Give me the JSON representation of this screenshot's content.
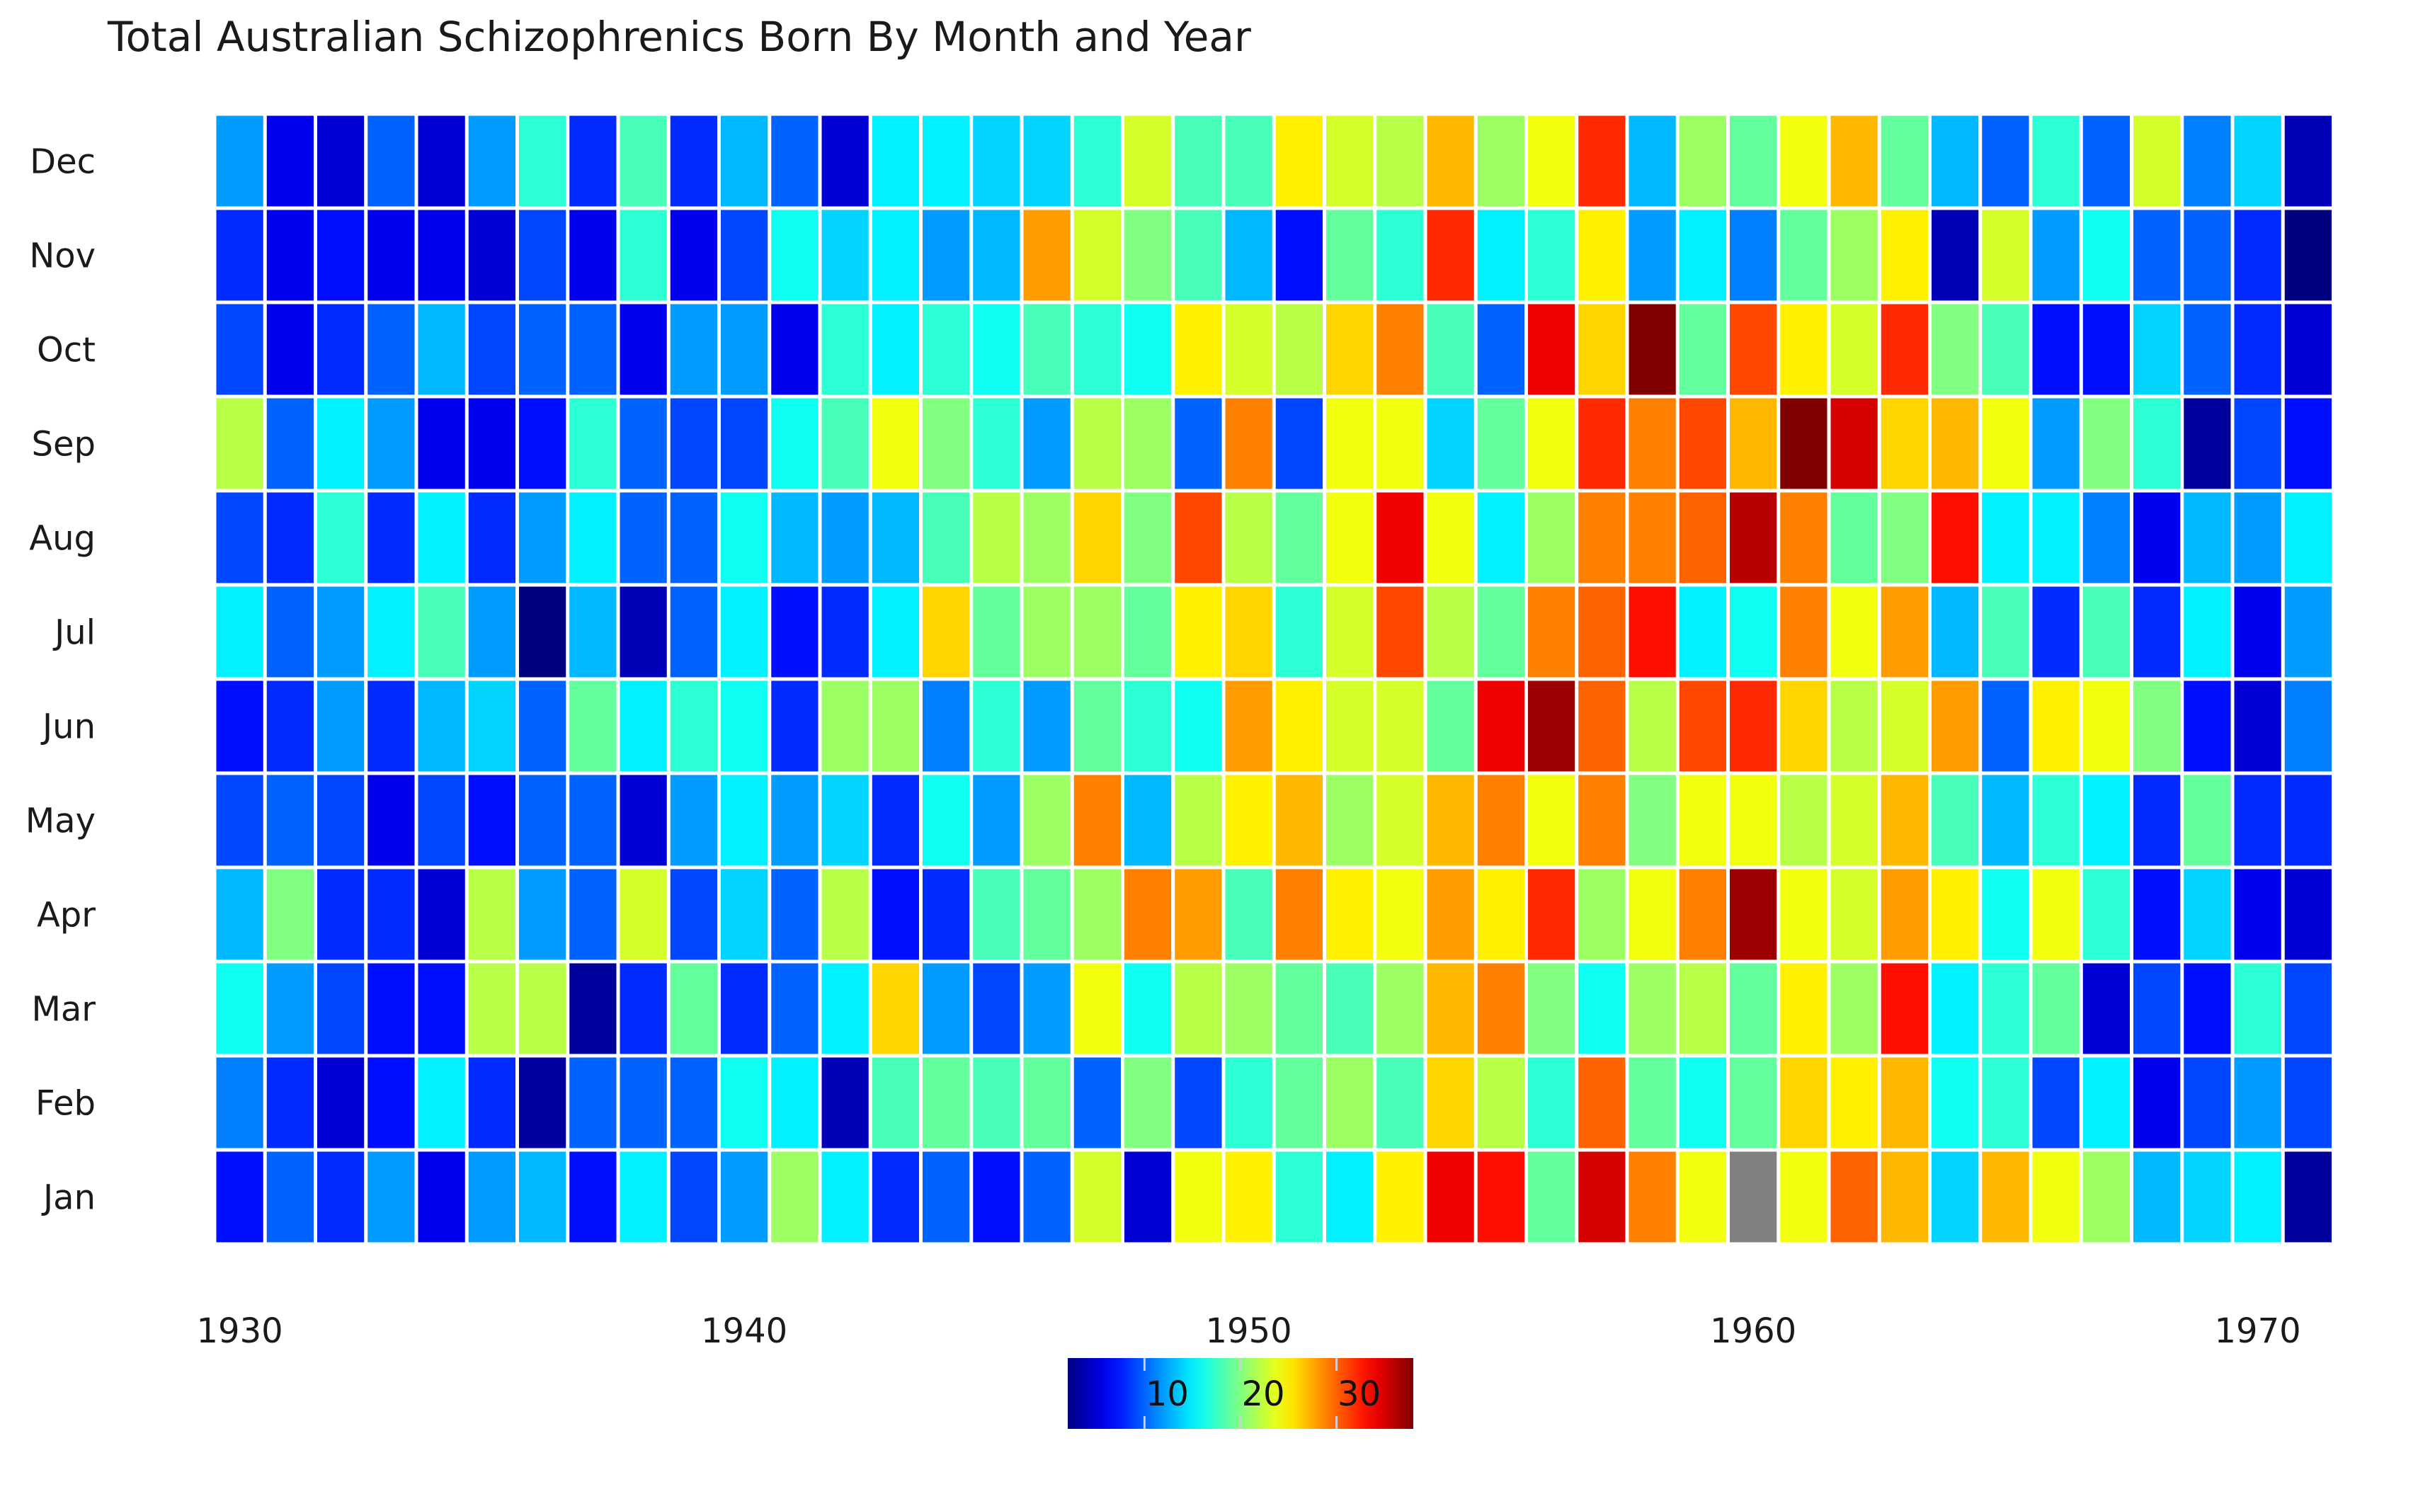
{
  "chart_data": {
    "type": "heatmap",
    "title": "Total Australian Schizophrenics Born By Month and Year",
    "xlabel": "",
    "ylabel": "",
    "x_ticks": [
      1930,
      1940,
      1950,
      1960,
      1970
    ],
    "y_categories": [
      "Jan",
      "Feb",
      "Mar",
      "Apr",
      "May",
      "Jun",
      "Jul",
      "Aug",
      "Sep",
      "Oct",
      "Nov",
      "Dec"
    ],
    "years": [
      1930,
      1931,
      1932,
      1933,
      1934,
      1935,
      1936,
      1937,
      1938,
      1939,
      1940,
      1941,
      1942,
      1943,
      1944,
      1945,
      1946,
      1947,
      1948,
      1949,
      1950,
      1951,
      1952,
      1953,
      1954,
      1955,
      1956,
      1957,
      1958,
      1959,
      1960,
      1961,
      1962,
      1963,
      1964,
      1965,
      1966,
      1967,
      1968,
      1969,
      1970,
      1971
    ],
    "colorbar": {
      "colormap": "jet",
      "range": [
        2,
        38
      ],
      "ticks": [
        10,
        20,
        30
      ],
      "missing_color": "#808080",
      "position": "bottom"
    },
    "values": {
      "Dec": [
        12,
        6,
        5,
        10,
        5,
        12,
        17,
        8,
        18,
        8,
        13,
        10,
        5,
        15,
        15,
        14,
        14,
        17,
        23,
        18,
        18,
        25,
        23,
        22,
        27,
        21,
        24,
        32,
        13,
        21,
        19,
        24,
        27,
        19,
        13,
        10,
        17,
        10,
        23,
        11,
        14,
        4
      ],
      "Nov": [
        8,
        6,
        7,
        6,
        6,
        5,
        9,
        6,
        17,
        6,
        9,
        16,
        14,
        15,
        12,
        13,
        28,
        23,
        20,
        18,
        13,
        7,
        19,
        17,
        32,
        15,
        17,
        25,
        12,
        15,
        11,
        19,
        21,
        25,
        4,
        23,
        12,
        16,
        10,
        10,
        8,
        2
      ],
      "Oct": [
        9,
        6,
        8,
        10,
        13,
        9,
        10,
        10,
        6,
        12,
        12,
        6,
        17,
        15,
        17,
        16,
        18,
        17,
        16,
        25,
        23,
        22,
        26,
        29,
        18,
        10,
        34,
        26,
        38,
        19,
        31,
        25,
        23,
        32,
        20,
        18,
        7,
        7,
        14,
        10,
        8,
        5
      ],
      "Sep": [
        22,
        10,
        15,
        12,
        6,
        6,
        7,
        17,
        10,
        9,
        9,
        16,
        18,
        24,
        20,
        17,
        12,
        22,
        21,
        10,
        29,
        9,
        24,
        24,
        14,
        19,
        24,
        32,
        29,
        31,
        27,
        38,
        35,
        26,
        27,
        24,
        12,
        20,
        17,
        3,
        9,
        7
      ],
      "Aug": [
        9,
        8,
        17,
        8,
        15,
        8,
        12,
        15,
        10,
        10,
        16,
        13,
        12,
        13,
        18,
        22,
        21,
        26,
        20,
        31,
        22,
        19,
        24,
        34,
        24,
        15,
        21,
        29,
        29,
        30,
        36,
        29,
        19,
        20,
        33,
        15,
        15,
        11,
        6,
        13,
        12,
        15
      ],
      "Jul": [
        15,
        10,
        12,
        15,
        18,
        12,
        2,
        13,
        4,
        10,
        15,
        7,
        8,
        15,
        26,
        19,
        21,
        21,
        19,
        25,
        26,
        17,
        23,
        31,
        22,
        19,
        29,
        30,
        33,
        15,
        16,
        29,
        24,
        28,
        13,
        18,
        8,
        18,
        8,
        15,
        6,
        12
      ],
      "Jun": [
        7,
        8,
        12,
        8,
        13,
        14,
        10,
        19,
        15,
        17,
        16,
        8,
        21,
        21,
        11,
        17,
        12,
        19,
        17,
        16,
        28,
        25,
        23,
        23,
        19,
        34,
        37,
        30,
        22,
        31,
        32,
        26,
        22,
        23,
        28,
        10,
        25,
        24,
        20,
        7,
        5,
        11
      ],
      "May": [
        9,
        10,
        9,
        6,
        9,
        7,
        10,
        10,
        5,
        12,
        15,
        12,
        14,
        8,
        16,
        12,
        21,
        29,
        13,
        22,
        25,
        27,
        21,
        23,
        27,
        29,
        24,
        29,
        20,
        24,
        24,
        22,
        23,
        27,
        18,
        13,
        17,
        15,
        8,
        19,
        8,
        8
      ],
      "Apr": [
        13,
        20,
        8,
        8,
        5,
        22,
        12,
        10,
        23,
        9,
        14,
        10,
        22,
        7,
        8,
        18,
        19,
        21,
        29,
        28,
        18,
        29,
        25,
        24,
        28,
        25,
        32,
        21,
        24,
        29,
        37,
        24,
        23,
        28,
        25,
        16,
        24,
        17,
        7,
        14,
        6,
        5
      ],
      "Mar": [
        16,
        12,
        9,
        7,
        7,
        22,
        22,
        3,
        8,
        19,
        8,
        10,
        15,
        26,
        12,
        9,
        12,
        24,
        16,
        22,
        21,
        19,
        18,
        21,
        27,
        29,
        20,
        16,
        21,
        22,
        19,
        25,
        21,
        33,
        15,
        17,
        19,
        5,
        9,
        7,
        17,
        9
      ],
      "Feb": [
        11,
        8,
        5,
        7,
        15,
        8,
        3,
        10,
        10,
        10,
        16,
        15,
        4,
        18,
        19,
        18,
        19,
        10,
        20,
        9,
        17,
        19,
        21,
        18,
        26,
        22,
        17,
        30,
        19,
        16,
        19,
        26,
        25,
        27,
        16,
        17,
        9,
        15,
        6,
        9,
        12,
        9
      ],
      "Jan": [
        7,
        10,
        8,
        12,
        6,
        12,
        13,
        7,
        15,
        9,
        12,
        21,
        15,
        8,
        10,
        7,
        10,
        23,
        5,
        24,
        25,
        17,
        15,
        25,
        34,
        33,
        19,
        35,
        29,
        24,
        null,
        24,
        30,
        27,
        14,
        27,
        24,
        21,
        13,
        14,
        15,
        3
      ]
    }
  }
}
